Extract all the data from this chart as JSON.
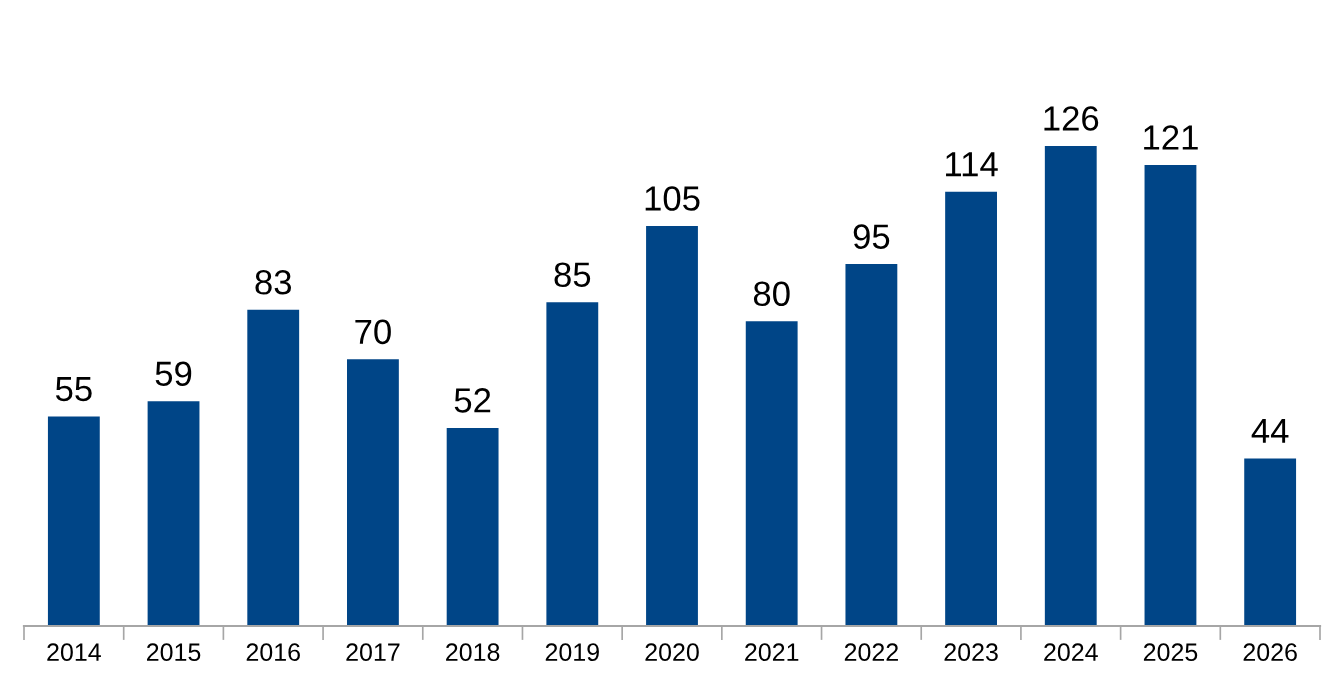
{
  "chart_data": {
    "type": "bar",
    "categories": [
      "2014",
      "2015",
      "2016",
      "2017",
      "2018",
      "2019",
      "2020",
      "2021",
      "2022",
      "2023",
      "2024",
      "2025",
      "2026"
    ],
    "values": [
      55,
      59,
      83,
      70,
      52,
      85,
      105,
      80,
      95,
      114,
      126,
      121,
      44
    ],
    "color": "#004587",
    "data_labels": true
  }
}
